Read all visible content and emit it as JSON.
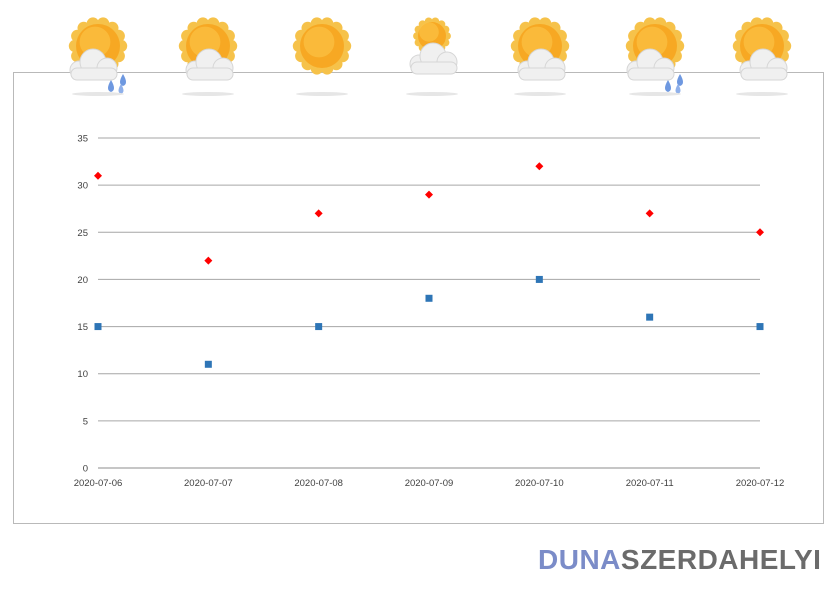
{
  "brand": {
    "logo_part_a": "DUNA",
    "logo_part_b": "SZERDAHELYI",
    "accent_color": "#7b8cc8",
    "text_color": "#6b6b6b"
  },
  "weather": [
    {
      "date": "2020-07-06",
      "icon": "sun-cloud-rain-icon"
    },
    {
      "date": "2020-07-07",
      "icon": "sun-cloud-icon"
    },
    {
      "date": "2020-07-08",
      "icon": "sun-icon"
    },
    {
      "date": "2020-07-09",
      "icon": "cloud-sun-icon"
    },
    {
      "date": "2020-07-10",
      "icon": "sun-cloud-icon"
    },
    {
      "date": "2020-07-11",
      "icon": "sun-cloud-rain-icon"
    },
    {
      "date": "2020-07-12",
      "icon": "sun-cloud-icon"
    }
  ],
  "chart_data": {
    "type": "scatter",
    "title": "",
    "xlabel": "",
    "ylabel": "",
    "categories": [
      "2020-07-06",
      "2020-07-07",
      "2020-07-08",
      "2020-07-09",
      "2020-07-10",
      "2020-07-11",
      "2020-07-12"
    ],
    "ylim": [
      0,
      35
    ],
    "yticks": [
      0,
      5,
      10,
      15,
      20,
      25,
      30,
      35
    ],
    "grid": true,
    "legend": "none",
    "series": [
      {
        "color": "#ff0000",
        "marker": "diamond",
        "values": [
          31,
          22,
          27,
          29,
          32,
          27,
          25
        ]
      },
      {
        "color": "#2e75b6",
        "marker": "square",
        "values": [
          15,
          11,
          15,
          18,
          20,
          16,
          15
        ]
      }
    ]
  }
}
